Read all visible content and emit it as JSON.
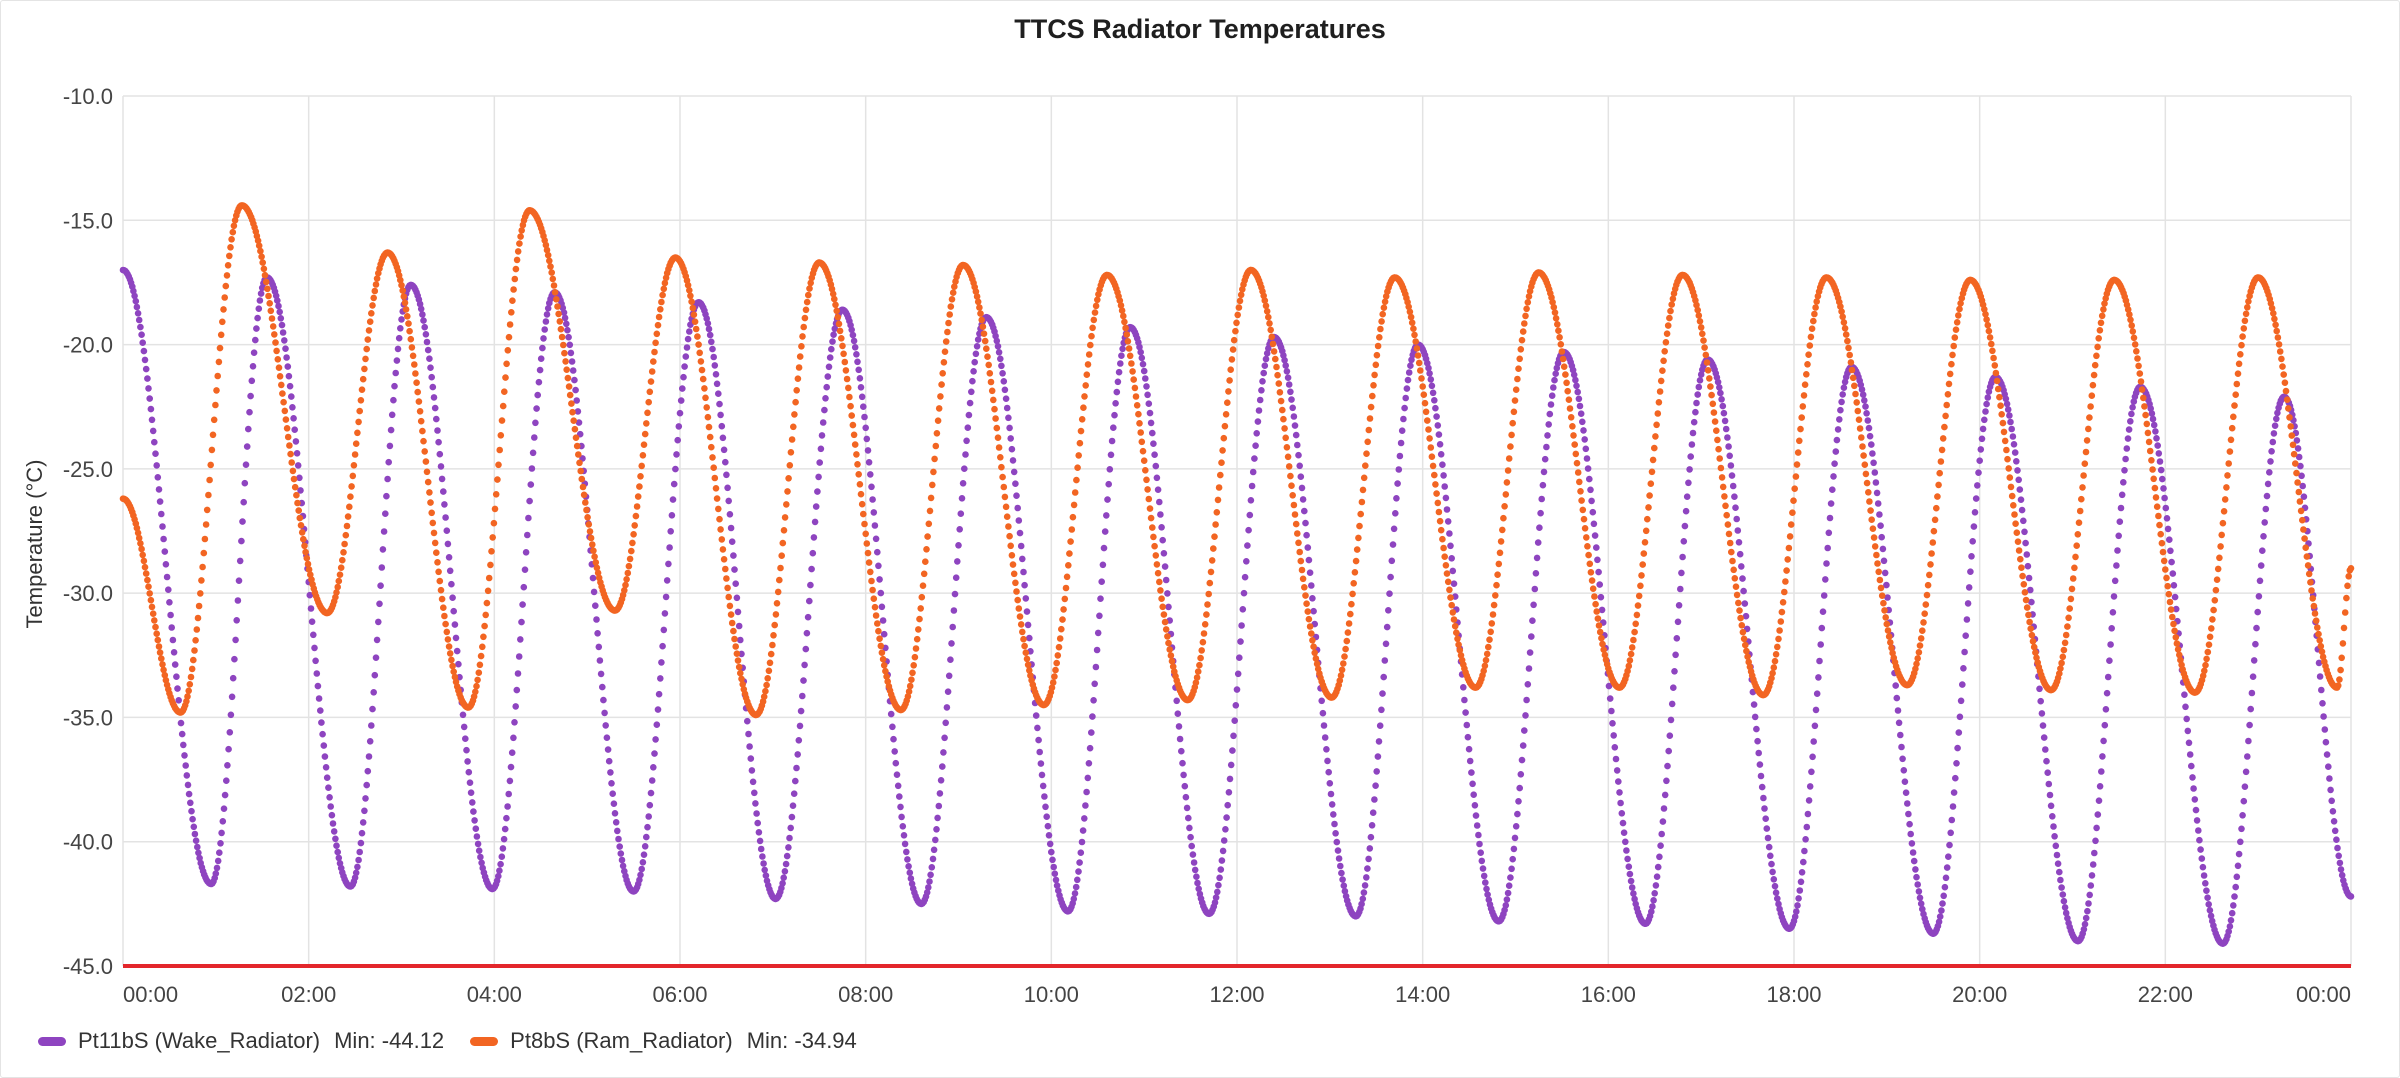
{
  "chart_data": {
    "type": "scatter",
    "title": "TTCS Radiator Temperatures",
    "xlabel": "",
    "ylabel": "Temperature (°C)",
    "xlim": [
      0,
      24
    ],
    "ylim": [
      -45,
      -10
    ],
    "yticks": [
      -10,
      -15,
      -20,
      -25,
      -30,
      -35,
      -40,
      -45
    ],
    "ytick_labels": [
      "-10.0",
      "-15.0",
      "-20.0",
      "-25.0",
      "-30.0",
      "-35.0",
      "-40.0",
      "-45.0"
    ],
    "xticks": [
      0,
      2,
      4,
      6,
      8,
      10,
      12,
      14,
      16,
      18,
      20,
      22,
      24
    ],
    "xtick_labels": [
      "00:00",
      "02:00",
      "04:00",
      "06:00",
      "08:00",
      "10:00",
      "12:00",
      "14:00",
      "16:00",
      "18:00",
      "20:00",
      "22:00",
      "00:00"
    ],
    "threshold": {
      "value": -45,
      "color": "#e3262b"
    },
    "grid": true,
    "legend_position": "bottom-left",
    "series": [
      {
        "name": "Pt11bS (Wake_Radiator)",
        "color": "#8e44c0",
        "min_label": "Min: -44.12",
        "x": [
          0.0,
          0.95,
          1.55,
          2.45,
          3.1,
          3.98,
          4.65,
          5.5,
          6.2,
          7.03,
          7.75,
          8.6,
          9.3,
          10.18,
          10.85,
          11.7,
          12.4,
          13.28,
          13.95,
          14.82,
          15.52,
          16.4,
          17.07,
          17.95,
          18.62,
          19.5,
          20.17,
          21.06,
          21.73,
          22.62,
          23.28,
          24.0
        ],
        "y": [
          -17.0,
          -41.7,
          -17.3,
          -41.8,
          -17.6,
          -41.9,
          -17.9,
          -42.0,
          -18.3,
          -42.3,
          -18.6,
          -42.5,
          -18.9,
          -42.8,
          -19.3,
          -42.9,
          -19.7,
          -43.0,
          -20.0,
          -43.2,
          -20.3,
          -43.3,
          -20.6,
          -43.5,
          -20.9,
          -43.7,
          -21.3,
          -44.0,
          -21.7,
          -44.1,
          -22.1,
          -42.2
        ]
      },
      {
        "name": "Pt8bS (Ram_Radiator)",
        "color": "#f26522",
        "min_label": "Min: -34.94",
        "x": [
          0.0,
          0.62,
          1.28,
          2.2,
          2.85,
          3.72,
          4.38,
          5.3,
          5.95,
          6.82,
          7.5,
          8.38,
          9.05,
          9.92,
          10.6,
          11.47,
          12.15,
          13.02,
          13.7,
          14.57,
          15.25,
          16.12,
          16.8,
          17.67,
          18.35,
          19.22,
          19.9,
          20.77,
          21.45,
          22.32,
          23.0,
          23.85,
          24.0
        ],
        "y": [
          -26.2,
          -34.8,
          -14.4,
          -30.8,
          -16.3,
          -34.6,
          -14.6,
          -30.7,
          -16.5,
          -34.9,
          -16.7,
          -34.7,
          -16.8,
          -34.5,
          -17.2,
          -34.3,
          -17.0,
          -34.2,
          -17.3,
          -33.8,
          -17.1,
          -33.8,
          -17.2,
          -34.1,
          -17.3,
          -33.7,
          -17.4,
          -33.9,
          -17.4,
          -34.0,
          -17.3,
          -33.8,
          -29.0
        ]
      }
    ]
  }
}
